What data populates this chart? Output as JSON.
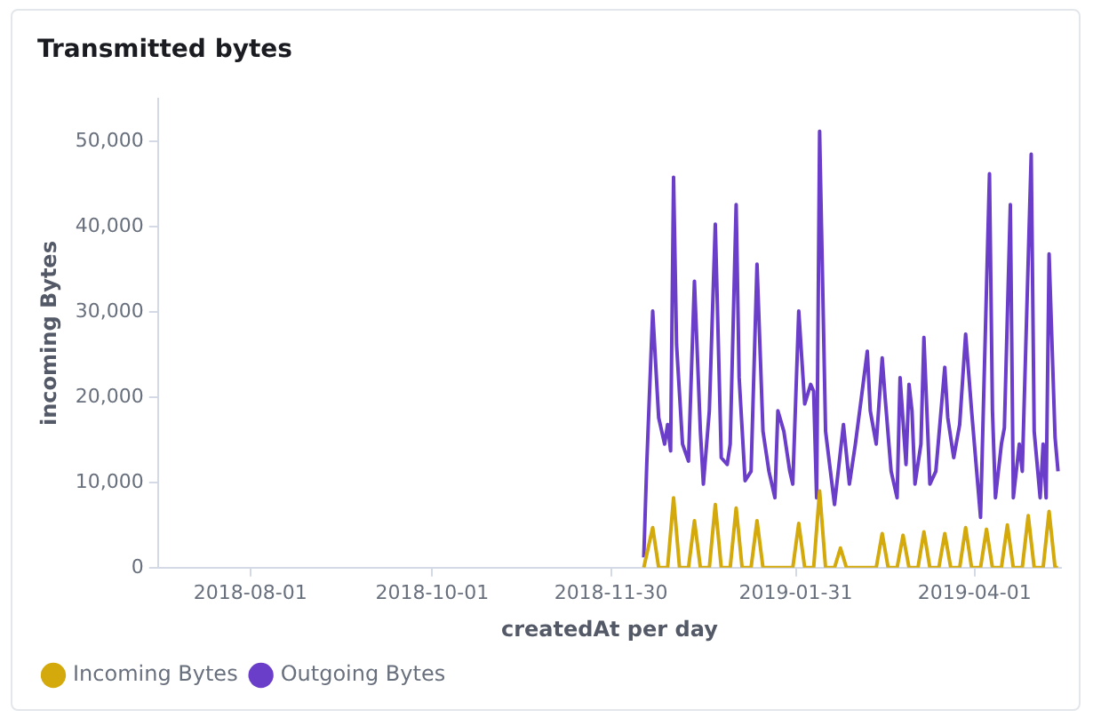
{
  "chart_data": {
    "type": "line",
    "title": "Transmitted bytes",
    "xlabel": "createdAt per day",
    "ylabel": "incoming Bytes",
    "xlim": [
      "2018-07-01",
      "2019-04-30"
    ],
    "xticks": [
      "2018-08-01",
      "2018-10-01",
      "2018-11-30",
      "2019-01-31",
      "2019-04-01"
    ],
    "ylim": [
      0,
      55000
    ],
    "yticks": [
      {
        "value": 0,
        "label": "0"
      },
      {
        "value": 10000,
        "label": "10,000"
      },
      {
        "value": 20000,
        "label": "20,000"
      },
      {
        "value": 30000,
        "label": "30,000"
      },
      {
        "value": 40000,
        "label": "40,000"
      },
      {
        "value": 50000,
        "label": "50,000"
      }
    ],
    "grid": false,
    "legend": "bottom left",
    "marker": "none",
    "line_style": "solid",
    "series": [
      {
        "name": "Incoming Bytes",
        "color": "#d4a90c",
        "x": [
          "2018-12-11",
          "2018-12-14",
          "2018-12-16",
          "2018-12-19",
          "2018-12-21",
          "2018-12-23",
          "2018-12-26",
          "2018-12-28",
          "2018-12-30",
          "2019-01-02",
          "2019-01-04",
          "2019-01-06",
          "2019-01-09",
          "2019-01-11",
          "2019-01-13",
          "2019-01-16",
          "2019-01-18",
          "2019-01-20",
          "2019-01-30",
          "2019-02-01",
          "2019-02-03",
          "2019-02-06",
          "2019-02-08",
          "2019-02-10",
          "2019-02-13",
          "2019-02-15",
          "2019-02-17",
          "2019-02-27",
          "2019-03-01",
          "2019-03-03",
          "2019-03-06",
          "2019-03-08",
          "2019-03-10",
          "2019-03-13",
          "2019-03-15",
          "2019-03-17",
          "2019-03-20",
          "2019-03-22",
          "2019-03-24",
          "2019-03-27",
          "2019-03-29",
          "2019-03-31",
          "2019-04-03",
          "2019-04-05",
          "2019-04-07",
          "2019-04-10",
          "2019-04-12",
          "2019-04-14",
          "2019-04-17",
          "2019-04-19",
          "2019-04-21",
          "2019-04-24",
          "2019-04-26",
          "2019-04-28",
          "2019-04-29"
        ],
        "values": [
          0,
          4700,
          0,
          0,
          8200,
          0,
          0,
          5500,
          0,
          0,
          7400,
          0,
          0,
          7000,
          0,
          0,
          5500,
          0,
          0,
          5200,
          0,
          0,
          9000,
          0,
          0,
          2300,
          0,
          0,
          4000,
          0,
          0,
          3800,
          0,
          0,
          4200,
          0,
          0,
          4000,
          0,
          0,
          4700,
          0,
          0,
          4500,
          0,
          0,
          5000,
          0,
          0,
          6100,
          0,
          0,
          6600,
          0,
          0
        ]
      },
      {
        "name": "Outgoing Bytes",
        "color": "#6a3ec9",
        "x": [
          "2018-12-11",
          "2018-12-12",
          "2018-12-14",
          "2018-12-16",
          "2018-12-18",
          "2018-12-19",
          "2018-12-20",
          "2018-12-21",
          "2018-12-22",
          "2018-12-24",
          "2018-12-26",
          "2018-12-28",
          "2018-12-30",
          "2018-12-31",
          "2019-01-02",
          "2019-01-04",
          "2019-01-06",
          "2019-01-08",
          "2019-01-09",
          "2019-01-11",
          "2019-01-12",
          "2019-01-14",
          "2019-01-16",
          "2019-01-18",
          "2019-01-20",
          "2019-01-22",
          "2019-01-24",
          "2019-01-25",
          "2019-01-27",
          "2019-01-29",
          "2019-01-30",
          "2019-02-01",
          "2019-02-03",
          "2019-02-05",
          "2019-02-06",
          "2019-02-07",
          "2019-02-08",
          "2019-02-10",
          "2019-02-13",
          "2019-02-16",
          "2019-02-18",
          "2019-02-20",
          "2019-02-22",
          "2019-02-24",
          "2019-02-25",
          "2019-02-27",
          "2019-03-01",
          "2019-03-02",
          "2019-03-04",
          "2019-03-06",
          "2019-03-07",
          "2019-03-09",
          "2019-03-10",
          "2019-03-11",
          "2019-03-12",
          "2019-03-14",
          "2019-03-15",
          "2019-03-17",
          "2019-03-19",
          "2019-03-22",
          "2019-03-23",
          "2019-03-25",
          "2019-03-27",
          "2019-03-29",
          "2019-03-31",
          "2019-04-03",
          "2019-04-06",
          "2019-04-07",
          "2019-04-08",
          "2019-04-10",
          "2019-04-11",
          "2019-04-13",
          "2019-04-14",
          "2019-04-16",
          "2019-04-17",
          "2019-04-20",
          "2019-04-21",
          "2019-04-23",
          "2019-04-24",
          "2019-04-25",
          "2019-04-26",
          "2019-04-28",
          "2019-04-29"
        ],
        "values": [
          1200,
          12100,
          30100,
          17600,
          14500,
          16800,
          13700,
          45800,
          26200,
          14500,
          12500,
          33600,
          16000,
          9800,
          18400,
          40300,
          12900,
          12100,
          14500,
          42600,
          22300,
          10200,
          11300,
          35600,
          16000,
          11300,
          8200,
          18400,
          16000,
          11300,
          9800,
          30100,
          19200,
          21500,
          20700,
          8200,
          51200,
          16000,
          7400,
          16800,
          9800,
          14500,
          19900,
          25400,
          18400,
          14500,
          24600,
          19900,
          11300,
          8200,
          22300,
          12100,
          21500,
          18400,
          9800,
          14500,
          27000,
          9800,
          11300,
          23500,
          17600,
          12900,
          16800,
          27400,
          18400,
          5900,
          46200,
          18400,
          8200,
          14500,
          16400,
          42600,
          8200,
          14500,
          11300,
          48500,
          16000,
          8200,
          14500,
          8200,
          36800,
          15300,
          11300
        ]
      }
    ]
  }
}
